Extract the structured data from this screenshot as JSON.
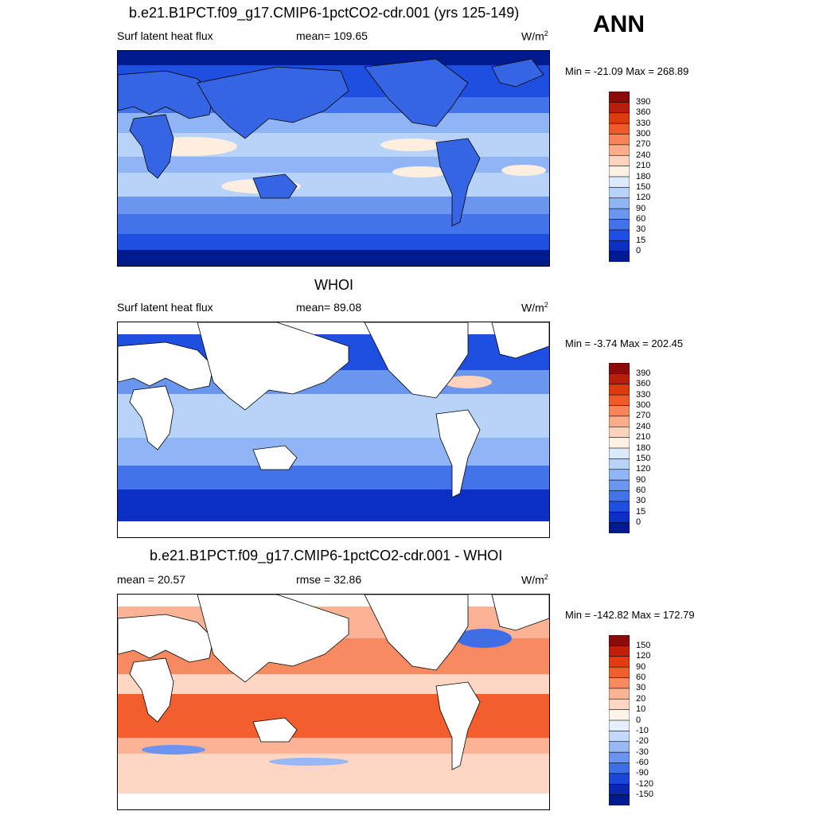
{
  "season": "ANN",
  "panels": [
    {
      "title": "b.e21.B1PCT.f09_g17.CMIP6-1pctCO2-cdr.001 (yrs 125-149)",
      "left_label": "Surf latent heat flux",
      "center_label": "mean= 109.65",
      "units": "W/m",
      "units_sup": "2",
      "minmax": "Min = -21.09 Max = 268.89",
      "colorbar": {
        "labels": [
          "390",
          "360",
          "330",
          "300",
          "270",
          "240",
          "210",
          "180",
          "150",
          "120",
          "90",
          "60",
          "30",
          "15",
          "0"
        ],
        "colors": [
          "#8c0a0a",
          "#b81e0a",
          "#df3a0f",
          "#f05a28",
          "#f8855a",
          "#fbad8a",
          "#fdd3bd",
          "#fdf0e4",
          "#dbe9fb",
          "#b8d3f9",
          "#8fb5f5",
          "#6a96f0",
          "#4373ea",
          "#1f4fe0",
          "#0c2fc6",
          "#001a8f"
        ]
      }
    },
    {
      "title": "WHOI",
      "left_label": "Surf latent heat flux",
      "center_label": "mean=  89.08",
      "units": "W/m",
      "units_sup": "2",
      "minmax": "Min =  -3.74 Max = 202.45",
      "colorbar": {
        "labels": [
          "390",
          "360",
          "330",
          "300",
          "270",
          "240",
          "210",
          "180",
          "150",
          "120",
          "90",
          "60",
          "30",
          "15",
          "0"
        ],
        "colors": [
          "#8c0a0a",
          "#b81e0a",
          "#df3a0f",
          "#f05a28",
          "#f8855a",
          "#fbad8a",
          "#fdd3bd",
          "#fdf0e4",
          "#dbe9fb",
          "#b8d3f9",
          "#8fb5f5",
          "#6a96f0",
          "#4373ea",
          "#1f4fe0",
          "#0c2fc6",
          "#001a8f"
        ]
      }
    },
    {
      "title": "b.e21.B1PCT.f09_g17.CMIP6-1pctCO2-cdr.001 - WHOI",
      "left_label": "mean =  20.57",
      "center_label": "rmse =  32.86",
      "units": "W/m",
      "units_sup": "2",
      "minmax": "Min = -142.82 Max = 172.79",
      "colorbar": {
        "labels": [
          "150",
          "120",
          "90",
          "60",
          "30",
          "20",
          "10",
          "0",
          "-10",
          "-20",
          "-30",
          "-60",
          "-90",
          "-120",
          "-150"
        ],
        "colors": [
          "#8c0a0a",
          "#c0200a",
          "#e23c12",
          "#f45e2c",
          "#f88a62",
          "#fbb396",
          "#fdd7c4",
          "#fff3ea",
          "#e6efff",
          "#c4d8fb",
          "#97b7f5",
          "#6b93ef",
          "#3e6de6",
          "#1a47d8",
          "#0a27b4",
          "#001a8f"
        ]
      }
    }
  ],
  "map_colors": {
    "land_model": "#3565e3",
    "ocean_low": "#0c2fc6",
    "ocean_mid": "#6a96f0",
    "ocean_high": "#fdeee0",
    "diff_pos": "#f3743f",
    "diff_neg": "#2e5fe6",
    "missing": "#ffffff"
  }
}
